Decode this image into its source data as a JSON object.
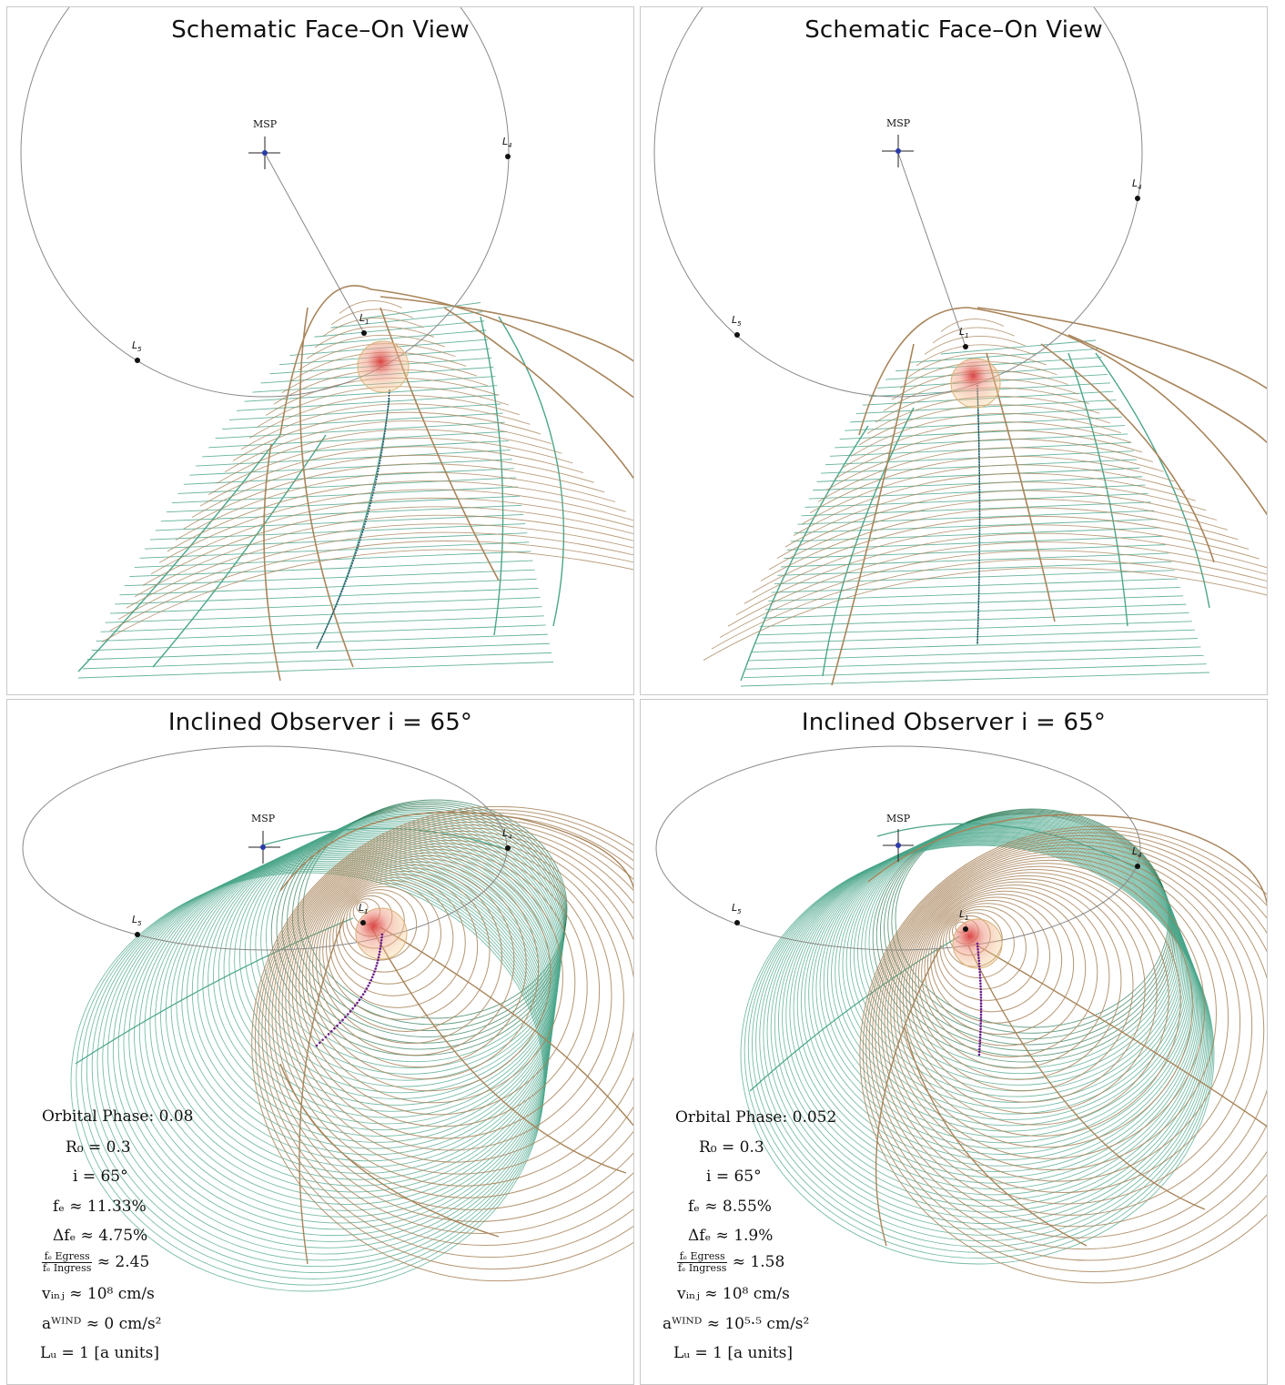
{
  "panels": [
    {
      "title": "Schematic Face–On View",
      "labels": {
        "msp": "MSP",
        "l1": "L",
        "l4": "L",
        "l5": "L",
        "l1_sub": "1",
        "l4_sub": "4",
        "l5_sub": "5"
      }
    },
    {
      "title": "Schematic Face–On View",
      "labels": {
        "msp": "MSP",
        "l1": "L",
        "l4": "L",
        "l5": "L",
        "l1_sub": "1",
        "l4_sub": "4",
        "l5_sub": "5"
      }
    },
    {
      "title": "Inclined Observer i = 65°",
      "labels": {
        "msp": "MSP",
        "l1": "L",
        "l4": "L",
        "l5": "L",
        "l1_sub": "1",
        "l4_sub": "4",
        "l5_sub": "5"
      },
      "params": {
        "orbital_phase_label": "Orbital Phase:",
        "orbital_phase": "0.08",
        "r0": "R₀ = 0.3",
        "incl": "i = 65°",
        "fE": "fₑ ≈ 11.33%",
        "dfE": "Δfₑ ≈ 4.75%",
        "ratio_num": "fₑ Egress",
        "ratio_den": "fₑ Ingress",
        "ratio_val": "≈ 2.45",
        "vinj": "vᵢₙⱼ ≈ 10⁸ cm/s",
        "awind": "aᵂᴵᴺᴰ ≈ 0 cm/s²",
        "lz": "Lᵤ = 1 [a units]"
      }
    },
    {
      "title": "Inclined Observer i = 65°",
      "labels": {
        "msp": "MSP",
        "l1": "L",
        "l4": "L",
        "l5": "L",
        "l1_sub": "1",
        "l4_sub": "4",
        "l5_sub": "5"
      },
      "params": {
        "orbital_phase_label": "Orbital Phase:",
        "orbital_phase": "0.052",
        "r0": "R₀ = 0.3",
        "incl": "i = 65°",
        "fE": "fₑ ≈ 8.55%",
        "dfE": "Δfₑ ≈ 1.9%",
        "ratio_num": "fₑ Egress",
        "ratio_den": "fₑ Ingress",
        "ratio_val": "≈ 1.58",
        "vinj": "vᵢₙⱼ ≈ 10⁸ cm/s",
        "awind": "aᵂᴵᴺᴰ ≈ 10⁵·⁵ cm/s²",
        "lz": "Lᵤ = 1 [a units]"
      }
    }
  ],
  "colors": {
    "orbit": "#8a8a8a",
    "brown": "#a8845a",
    "green": "#4aa58a",
    "dark_green": "#2e7d5a",
    "star_red": "#d83a3a",
    "trail": "#6a1a8a"
  }
}
